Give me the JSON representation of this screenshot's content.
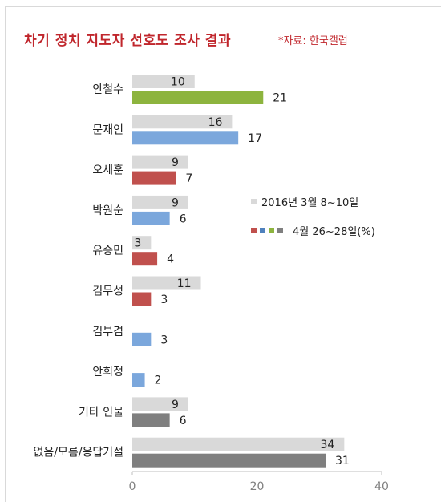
{
  "title": "차기 정치 지도자 선호도 조사 결과",
  "source": "*자료: 한국갤럽",
  "chart_data": {
    "type": "bar",
    "orientation": "horizontal",
    "categories": [
      "안철수",
      "문재인",
      "오세훈",
      "박원순",
      "유승민",
      "김무성",
      "김부겸",
      "안희정",
      "기타 인물",
      "없음/모름/응답거절"
    ],
    "series": [
      {
        "name": "2016년 3월 8~10일",
        "values": [
          10,
          16,
          9,
          9,
          3,
          11,
          null,
          null,
          9,
          34
        ],
        "colors": [
          "#d9d9d9"
        ]
      },
      {
        "name": "4월 26~28일(%)",
        "values": [
          21,
          17,
          7,
          6,
          4,
          3,
          3,
          2,
          6,
          31
        ],
        "colors": [
          "#8db43e",
          "#7ba7dc",
          "#c0504d",
          "#7ba7dc",
          "#c0504d",
          "#c0504d",
          "#7ba7dc",
          "#7ba7dc",
          "#7f7f7f",
          "#7f7f7f"
        ]
      }
    ],
    "legend_swatch_colors": {
      "series_1": [
        "#d9d9d9"
      ],
      "series_2": [
        "#c0504d",
        "#4f81bd",
        "#8db43e",
        "#7f7f7f"
      ]
    },
    "xlim": [
      0,
      40
    ],
    "xticks": [
      "0",
      "20",
      "40"
    ],
    "grid": false,
    "legend_position": "right"
  }
}
